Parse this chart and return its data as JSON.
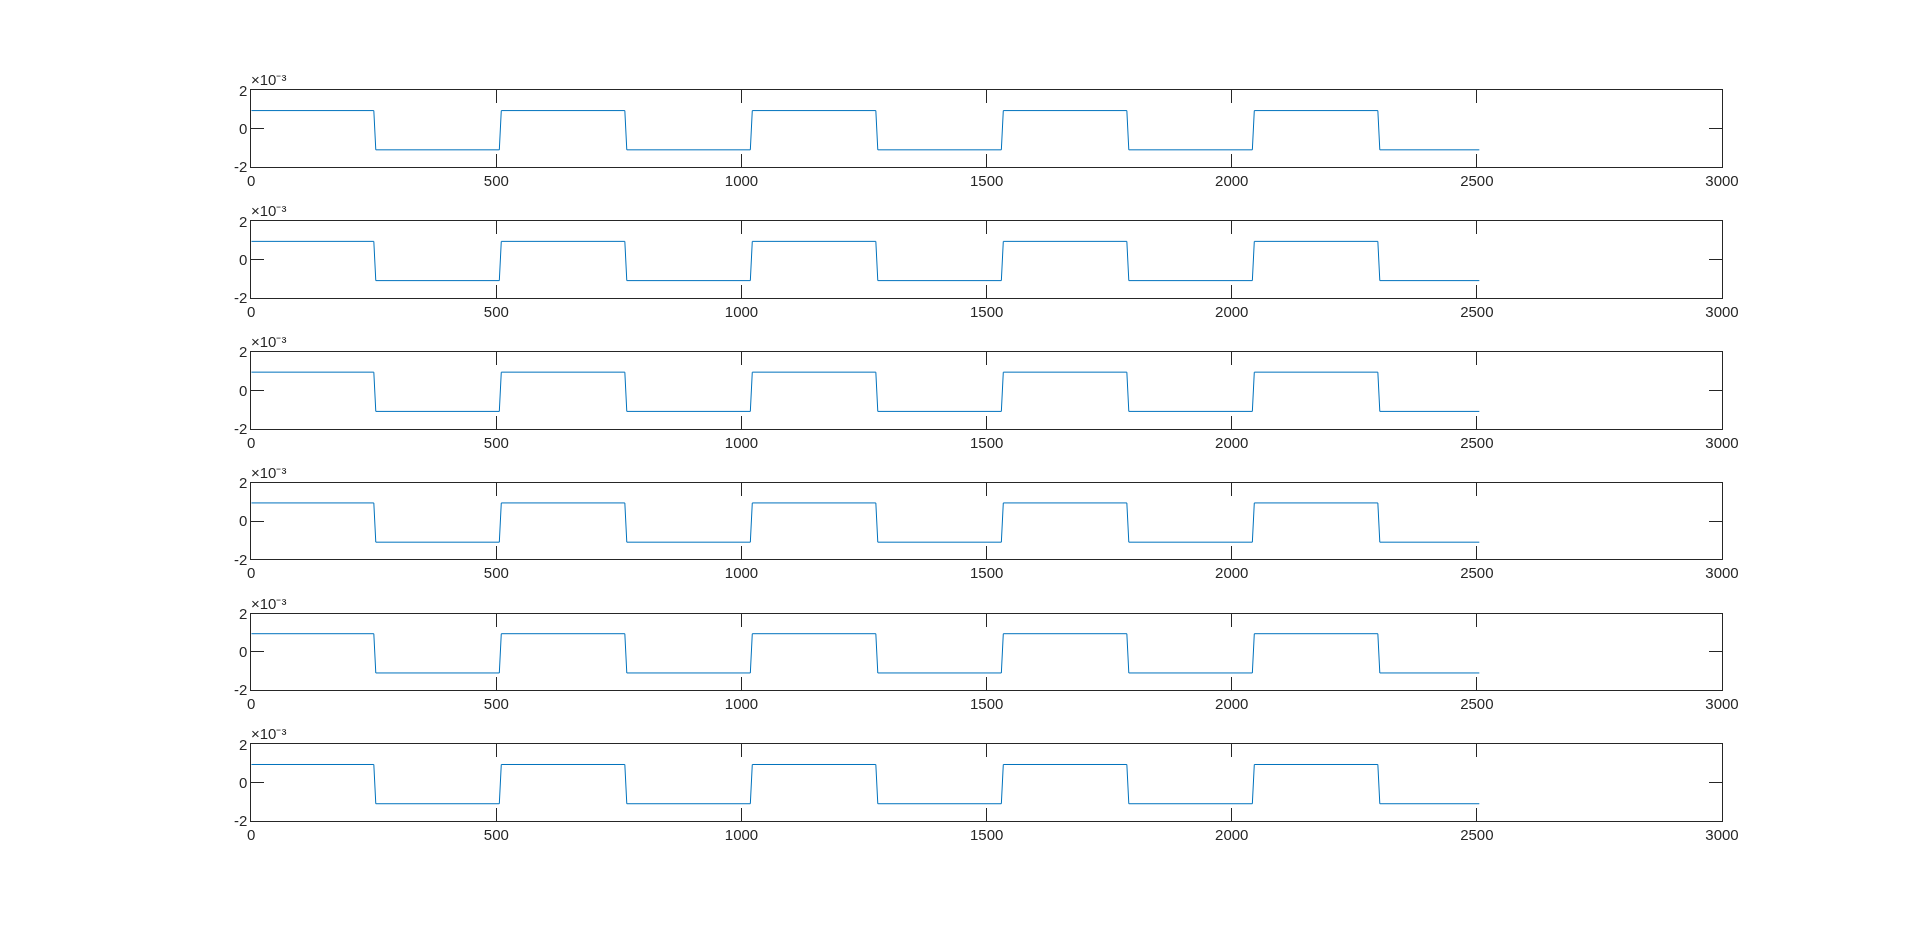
{
  "chart_data": [
    {
      "type": "line",
      "x": [
        0,
        250,
        254,
        506,
        510,
        762,
        766,
        1018,
        1022,
        1274,
        1278,
        1530,
        1534,
        1786,
        1790,
        2042,
        2046,
        2298,
        2302,
        2505
      ],
      "values": [
        0.95,
        0.95,
        -1.1,
        -1.1,
        0.95,
        0.95,
        -1.1,
        -1.1,
        0.95,
        0.95,
        -1.1,
        -1.1,
        0.95,
        0.95,
        -1.1,
        -1.1,
        0.95,
        0.95,
        -1.1,
        -1.1
      ],
      "color": "#0072bd",
      "xlim": [
        0,
        3000
      ],
      "xticks": [
        0,
        500,
        1000,
        1500,
        2000,
        2500,
        3000
      ],
      "ylim": [
        -2,
        2
      ],
      "yticks": [
        -2,
        0,
        2
      ],
      "annotations": [
        "×10⁻³"
      ]
    },
    {
      "type": "line",
      "x": [
        0,
        250,
        254,
        506,
        510,
        762,
        766,
        1018,
        1022,
        1274,
        1278,
        1530,
        1534,
        1786,
        1790,
        2042,
        2046,
        2298,
        2302,
        2505
      ],
      "values": [
        0.95,
        0.95,
        -1.1,
        -1.1,
        0.95,
        0.95,
        -1.1,
        -1.1,
        0.95,
        0.95,
        -1.1,
        -1.1,
        0.95,
        0.95,
        -1.1,
        -1.1,
        0.95,
        0.95,
        -1.1,
        -1.1
      ],
      "color": "#0072bd",
      "xlim": [
        0,
        3000
      ],
      "xticks": [
        0,
        500,
        1000,
        1500,
        2000,
        2500,
        3000
      ],
      "ylim": [
        -2,
        2
      ],
      "yticks": [
        -2,
        0,
        2
      ],
      "annotations": [
        "×10⁻³"
      ]
    },
    {
      "type": "line",
      "x": [
        0,
        250,
        254,
        506,
        510,
        762,
        766,
        1018,
        1022,
        1274,
        1278,
        1530,
        1534,
        1786,
        1790,
        2042,
        2046,
        2298,
        2302,
        2505
      ],
      "values": [
        0.95,
        0.95,
        -1.1,
        -1.1,
        0.95,
        0.95,
        -1.1,
        -1.1,
        0.95,
        0.95,
        -1.1,
        -1.1,
        0.95,
        0.95,
        -1.1,
        -1.1,
        0.95,
        0.95,
        -1.1,
        -1.1
      ],
      "color": "#0072bd",
      "xlim": [
        0,
        3000
      ],
      "xticks": [
        0,
        500,
        1000,
        1500,
        2000,
        2500,
        3000
      ],
      "ylim": [
        -2,
        2
      ],
      "yticks": [
        -2,
        0,
        2
      ],
      "annotations": [
        "×10⁻³"
      ]
    },
    {
      "type": "line",
      "x": [
        0,
        250,
        254,
        506,
        510,
        762,
        766,
        1018,
        1022,
        1274,
        1278,
        1530,
        1534,
        1786,
        1790,
        2042,
        2046,
        2298,
        2302,
        2505
      ],
      "values": [
        0.95,
        0.95,
        -1.1,
        -1.1,
        0.95,
        0.95,
        -1.1,
        -1.1,
        0.95,
        0.95,
        -1.1,
        -1.1,
        0.95,
        0.95,
        -1.1,
        -1.1,
        0.95,
        0.95,
        -1.1,
        -1.1
      ],
      "color": "#0072bd",
      "xlim": [
        0,
        3000
      ],
      "xticks": [
        0,
        500,
        1000,
        1500,
        2000,
        2500,
        3000
      ],
      "ylim": [
        -2,
        2
      ],
      "yticks": [
        -2,
        0,
        2
      ],
      "annotations": [
        "×10⁻³"
      ]
    },
    {
      "type": "line",
      "x": [
        0,
        250,
        254,
        506,
        510,
        762,
        766,
        1018,
        1022,
        1274,
        1278,
        1530,
        1534,
        1786,
        1790,
        2042,
        2046,
        2298,
        2302,
        2505
      ],
      "values": [
        0.95,
        0.95,
        -1.1,
        -1.1,
        0.95,
        0.95,
        -1.1,
        -1.1,
        0.95,
        0.95,
        -1.1,
        -1.1,
        0.95,
        0.95,
        -1.1,
        -1.1,
        0.95,
        0.95,
        -1.1,
        -1.1
      ],
      "color": "#0072bd",
      "xlim": [
        0,
        3000
      ],
      "xticks": [
        0,
        500,
        1000,
        1500,
        2000,
        2500,
        3000
      ],
      "ylim": [
        -2,
        2
      ],
      "yticks": [
        -2,
        0,
        2
      ],
      "annotations": [
        "×10⁻³"
      ]
    },
    {
      "type": "line",
      "x": [
        0,
        250,
        254,
        506,
        510,
        762,
        766,
        1018,
        1022,
        1274,
        1278,
        1530,
        1534,
        1786,
        1790,
        2042,
        2046,
        2298,
        2302,
        2505
      ],
      "values": [
        0.95,
        0.95,
        -1.1,
        -1.1,
        0.95,
        0.95,
        -1.1,
        -1.1,
        0.95,
        0.95,
        -1.1,
        -1.1,
        0.95,
        0.95,
        -1.1,
        -1.1,
        0.95,
        0.95,
        -1.1,
        -1.1
      ],
      "color": "#0072bd",
      "xlim": [
        0,
        3000
      ],
      "xticks": [
        0,
        500,
        1000,
        1500,
        2000,
        2500,
        3000
      ],
      "ylim": [
        -2,
        2
      ],
      "yticks": [
        -2,
        0,
        2
      ],
      "annotations": [
        "×10⁻³"
      ]
    }
  ]
}
